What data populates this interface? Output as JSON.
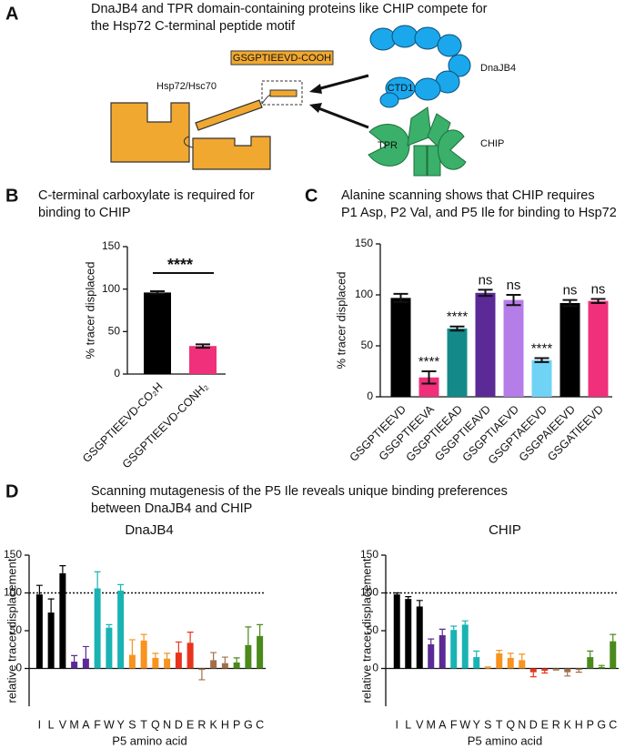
{
  "panel_labels": [
    "A",
    "B",
    "C",
    "D"
  ],
  "panel_a": {
    "title": [
      "DnaJB4 and TPR domain-containing proteins like CHIP compete for",
      "the Hsp72 C-terminal peptide motif"
    ],
    "peptide": "GSGPTIEEVD-COOH",
    "hsp": "Hsp72/Hsc70",
    "dnajb4": "DnaJB4",
    "ctd1": "CTD1",
    "chip": "CHIP",
    "tpr": "TPR"
  },
  "panel_d": {
    "title": [
      "Scanning mutagenesis of the P5 Ile reveals unique binding preferences",
      "between DnaJB4 and CHIP"
    ]
  },
  "chart_data": [
    {
      "type": "bar",
      "title": [
        "C-terminal carboxylate is required for",
        "binding to CHIP"
      ],
      "ylabel": "% tracer displaced",
      "categories": [
        "GSGPTIEEVD-CO₂H",
        "GSGPTIEEVD-CONH₂"
      ],
      "values": [
        96,
        33
      ],
      "errors": [
        1.5,
        2
      ],
      "colors": [
        "#000000",
        "#f0307a"
      ],
      "significance": "****",
      "ylim": [
        0,
        150
      ],
      "yticks": [
        0,
        50,
        100,
        150
      ]
    },
    {
      "type": "bar",
      "title": [
        "Alanine scanning shows that CHIP requires",
        "P1 Asp, P2 Val, and P5 Ile for binding to Hsp72"
      ],
      "ylabel": "% tracer displaced",
      "categories": [
        "GSGPTIEEVD",
        "GSGPTIEEVA",
        "GSGPTIEEAD",
        "GSGPTIEAVD",
        "GSGPTIAEVD",
        "GSGPTAEEVD",
        "GSGPAIEEVD",
        "GSGATIEEVD"
      ],
      "values": [
        97,
        19,
        67,
        102,
        95,
        36,
        92,
        94
      ],
      "errors": [
        4,
        6,
        2,
        3,
        5,
        2,
        3,
        2
      ],
      "colors": [
        "#000000",
        "#f0307a",
        "#14898a",
        "#5b2a96",
        "#b57de8",
        "#6fd3f5",
        "#000000",
        "#f0307a"
      ],
      "annotations": [
        null,
        "****",
        "****",
        "ns",
        "ns",
        "****",
        "ns",
        "ns"
      ],
      "ylim": [
        0,
        150
      ],
      "yticks": [
        0,
        50,
        100,
        150
      ]
    },
    {
      "type": "bar",
      "title": "DnaJB4",
      "ylabel": "relative tracer displacement",
      "xlabel": "P5 amino acid",
      "categories": [
        "I",
        "L",
        "V",
        "M",
        "A",
        "F",
        "W",
        "Y",
        "S",
        "T",
        "Q",
        "N",
        "D",
        "E",
        "R",
        "K",
        "H",
        "P",
        "G",
        "C"
      ],
      "values": [
        98,
        74,
        126,
        9,
        13,
        106,
        54,
        103,
        18,
        37,
        14,
        13,
        21,
        34,
        -2,
        11,
        7,
        8,
        31,
        43
      ],
      "errors": [
        12,
        18,
        10,
        8,
        16,
        22,
        4,
        8,
        20,
        8,
        6,
        7,
        14,
        14,
        13,
        10,
        8,
        6,
        24,
        15
      ],
      "colors": [
        "#000000",
        "#000000",
        "#000000",
        "#5b2a96",
        "#5b2a96",
        "#1ab3b3",
        "#1ab3b3",
        "#1ab3b3",
        "#f7931e",
        "#f7931e",
        "#f7931e",
        "#f7931e",
        "#e8341c",
        "#e8341c",
        "#a0704a",
        "#a0704a",
        "#a0704a",
        "#4a8a1a",
        "#4a8a1a",
        "#4a8a1a"
      ],
      "reference_line": 100,
      "ylim": [
        -50,
        150
      ],
      "yticks": [
        0,
        50,
        100,
        150
      ]
    },
    {
      "type": "bar",
      "title": "CHIP",
      "ylabel": "relative tracer displacement",
      "xlabel": "P5 amino acid",
      "categories": [
        "I",
        "L",
        "V",
        "M",
        "A",
        "F",
        "W",
        "Y",
        "S",
        "T",
        "Q",
        "N",
        "D",
        "E",
        "R",
        "K",
        "H",
        "P",
        "G",
        "C"
      ],
      "values": [
        98,
        92,
        82,
        32,
        44,
        51,
        58,
        15,
        0,
        20,
        14,
        11,
        -5,
        -3,
        -1,
        -5,
        -2,
        15,
        2,
        36
      ],
      "errors": [
        2,
        3,
        8,
        7,
        8,
        5,
        5,
        8,
        2,
        4,
        6,
        8,
        6,
        3,
        1,
        5,
        3,
        8,
        2,
        9
      ],
      "colors": [
        "#000000",
        "#000000",
        "#000000",
        "#5b2a96",
        "#5b2a96",
        "#1ab3b3",
        "#1ab3b3",
        "#1ab3b3",
        "#f7931e",
        "#f7931e",
        "#f7931e",
        "#f7931e",
        "#e8341c",
        "#e8341c",
        "#a0704a",
        "#a0704a",
        "#a0704a",
        "#4a8a1a",
        "#4a8a1a",
        "#4a8a1a"
      ],
      "reference_line": 100,
      "ylim": [
        -50,
        150
      ],
      "yticks": [
        0,
        50,
        100,
        150
      ]
    }
  ]
}
